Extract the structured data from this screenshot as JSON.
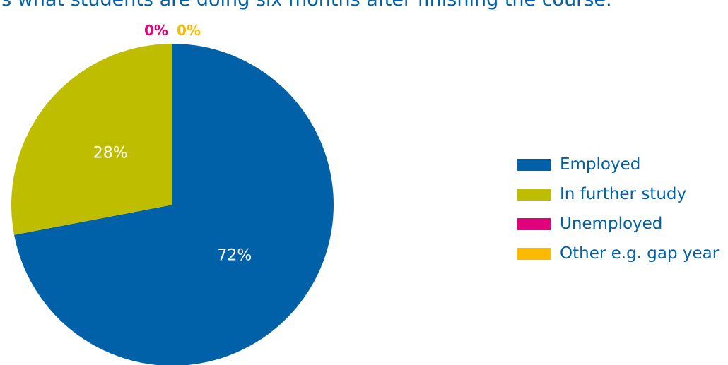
{
  "chart_data": {
    "type": "pie",
    "title": "s is what students are doing six months after finishing the course.",
    "categories": [
      "Employed",
      "In further study",
      "Unemployed",
      "Other e.g. gap year"
    ],
    "values": [
      72,
      28,
      0,
      0
    ],
    "value_labels": [
      "72%",
      "28%",
      "0%",
      "0%"
    ],
    "colors": [
      "#0061a8",
      "#bfbd00",
      "#e3007d",
      "#fbb900"
    ],
    "legend_placement": "right"
  }
}
